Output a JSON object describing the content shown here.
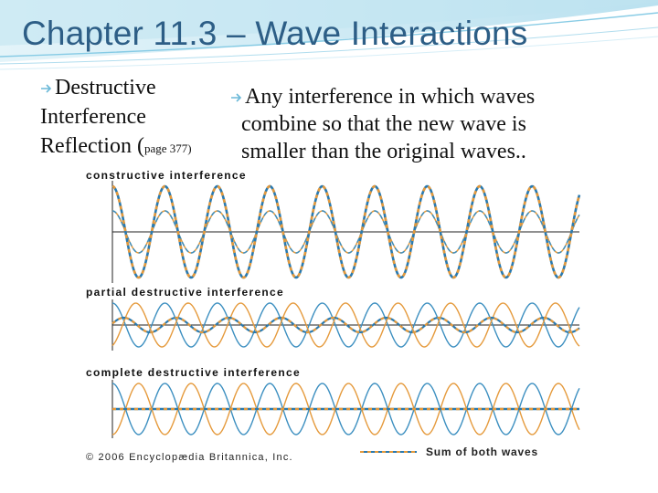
{
  "slide": {
    "title": "Chapter 11.3 – Wave Interactions",
    "left": {
      "line1": "Destructive",
      "line2": "Interference",
      "line3_prefix": "Reflection (",
      "line3_small": "page 377)"
    },
    "right": {
      "line1": "Any interference in which waves",
      "line2": "combine so that the new wave is",
      "line3": "smaller than the original waves.."
    }
  },
  "figure": {
    "panel_labels": [
      "constructive interference",
      "partial destructive interference",
      "complete destructive interference"
    ],
    "credit": "© 2006 Encyclopædia Britannica, Inc.",
    "legend_label": "Sum of both waves",
    "colors": {
      "wave_blue": "#3c8fc0",
      "wave_orange": "#e59a3c",
      "sum_dashed_blue": "#2a7ab0",
      "axis": "#222222"
    },
    "cycles_per_panel": 9
  }
}
